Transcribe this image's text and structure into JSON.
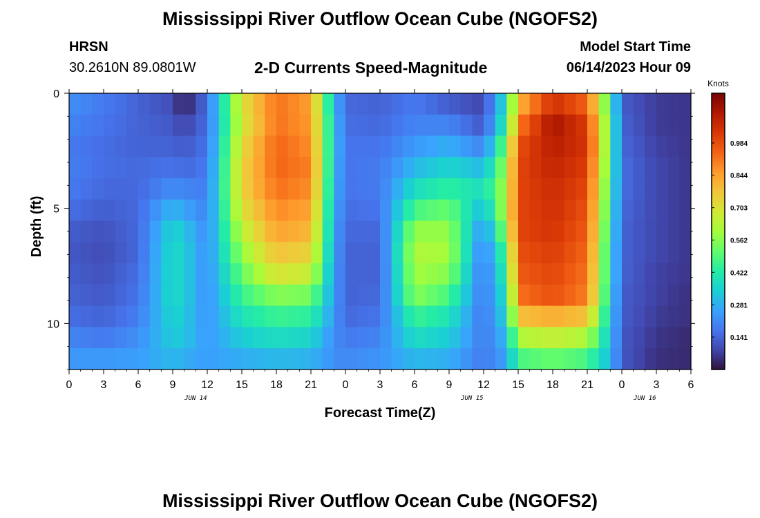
{
  "header": {
    "title_top": "Mississippi River Outflow Ocean Cube (NGOFS2)",
    "station_name": "HRSN",
    "station_coords": "30.2610N  89.0801W",
    "subtitle": "2-D Currents Speed-Magnitude",
    "model_start_label": "Model Start Time",
    "model_start_value": "06/14/2023 Hour 09",
    "title_bottom": "Mississippi River Outflow Ocean Cube (NGOFS2)"
  },
  "chart_data": {
    "type": "heatmap",
    "title": "2-D Currents Speed-Magnitude",
    "xlabel": "Forecast Time(Z)",
    "ylabel": "Depth (ft)",
    "x_tick_labels": [
      "0",
      "3",
      "6",
      "9",
      "12",
      "15",
      "18",
      "21",
      "0",
      "3",
      "6",
      "9",
      "12",
      "15",
      "18",
      "21",
      "0",
      "3",
      "6"
    ],
    "x_date_labels": [
      {
        "label": "JUN 14",
        "hours_from_start": 11
      },
      {
        "label": "JUN 15",
        "hours_from_start": 35
      },
      {
        "label": "JUN 16",
        "hours_from_start": 50
      }
    ],
    "x_range_hours": [
      0,
      54
    ],
    "y_tick_labels": [
      "0",
      "5",
      "10"
    ],
    "y_range_ft": [
      0,
      12
    ],
    "y_inverted": true,
    "colorbar": {
      "unit_label": "Knots",
      "tick_labels": [
        "0.141",
        "0.281",
        "0.422",
        "0.562",
        "0.703",
        "0.844",
        "0.984"
      ],
      "range": [
        0.0,
        1.2
      ],
      "colormap": [
        "#30123b",
        "#4145ab",
        "#4675ed",
        "#39a2fc",
        "#1bcfd4",
        "#24eca6",
        "#61fc6c",
        "#a4fc3b",
        "#d1e834",
        "#f3c63a",
        "#fe9b2d",
        "#f36315",
        "#d93806",
        "#b11901",
        "#7a0403"
      ]
    },
    "time_hours": [
      0,
      3,
      6,
      9,
      10,
      12,
      15,
      18,
      21,
      23,
      24,
      27,
      30,
      33,
      36,
      38,
      39,
      42,
      45,
      47,
      48,
      51,
      54
    ],
    "depth_ft": [
      0,
      1,
      2,
      3,
      4,
      5,
      6,
      7,
      8,
      9,
      10,
      11,
      12
    ],
    "speed_knots": [
      [
        0.22,
        0.18,
        0.14,
        0.1,
        0.02,
        0.16,
        0.7,
        0.92,
        0.85,
        0.3,
        0.15,
        0.14,
        0.18,
        0.13,
        0.09,
        0.4,
        0.8,
        1.05,
        0.95,
        0.45,
        0.13,
        0.07,
        0.06
      ],
      [
        0.2,
        0.17,
        0.14,
        0.12,
        0.08,
        0.16,
        0.68,
        0.92,
        0.86,
        0.32,
        0.16,
        0.15,
        0.2,
        0.2,
        0.12,
        0.45,
        0.9,
        1.13,
        1.02,
        0.48,
        0.14,
        0.07,
        0.06
      ],
      [
        0.18,
        0.16,
        0.14,
        0.14,
        0.12,
        0.17,
        0.72,
        0.94,
        0.88,
        0.32,
        0.17,
        0.17,
        0.24,
        0.28,
        0.2,
        0.55,
        0.98,
        1.1,
        1.04,
        0.48,
        0.15,
        0.08,
        0.06
      ],
      [
        0.19,
        0.16,
        0.15,
        0.17,
        0.15,
        0.18,
        0.74,
        0.94,
        0.9,
        0.31,
        0.17,
        0.18,
        0.3,
        0.36,
        0.3,
        0.6,
        1.0,
        1.08,
        1.02,
        0.46,
        0.16,
        0.09,
        0.06
      ],
      [
        0.18,
        0.15,
        0.15,
        0.22,
        0.2,
        0.19,
        0.74,
        0.92,
        0.88,
        0.3,
        0.17,
        0.18,
        0.38,
        0.44,
        0.38,
        0.62,
        1.0,
        1.06,
        1.0,
        0.44,
        0.16,
        0.09,
        0.06
      ],
      [
        0.16,
        0.13,
        0.15,
        0.3,
        0.26,
        0.2,
        0.7,
        0.88,
        0.84,
        0.28,
        0.16,
        0.17,
        0.48,
        0.52,
        0.3,
        0.64,
        1.0,
        1.05,
        0.98,
        0.42,
        0.15,
        0.09,
        0.06
      ],
      [
        0.13,
        0.11,
        0.15,
        0.36,
        0.32,
        0.21,
        0.64,
        0.84,
        0.8,
        0.27,
        0.15,
        0.15,
        0.58,
        0.58,
        0.22,
        0.58,
        1.0,
        1.04,
        0.96,
        0.4,
        0.14,
        0.09,
        0.06
      ],
      [
        0.12,
        0.1,
        0.15,
        0.38,
        0.34,
        0.22,
        0.58,
        0.78,
        0.74,
        0.26,
        0.14,
        0.14,
        0.62,
        0.6,
        0.18,
        0.5,
        0.98,
        1.02,
        0.94,
        0.38,
        0.14,
        0.09,
        0.06
      ],
      [
        0.13,
        0.11,
        0.16,
        0.38,
        0.34,
        0.22,
        0.52,
        0.7,
        0.66,
        0.25,
        0.14,
        0.14,
        0.6,
        0.56,
        0.17,
        0.45,
        0.96,
        1.0,
        0.92,
        0.38,
        0.14,
        0.08,
        0.06
      ],
      [
        0.14,
        0.12,
        0.17,
        0.38,
        0.34,
        0.22,
        0.46,
        0.56,
        0.54,
        0.25,
        0.14,
        0.15,
        0.56,
        0.48,
        0.17,
        0.4,
        0.92,
        0.98,
        0.9,
        0.36,
        0.13,
        0.08,
        0.05
      ],
      [
        0.16,
        0.14,
        0.19,
        0.36,
        0.33,
        0.23,
        0.4,
        0.46,
        0.44,
        0.24,
        0.15,
        0.17,
        0.46,
        0.4,
        0.17,
        0.36,
        0.78,
        0.82,
        0.78,
        0.34,
        0.13,
        0.07,
        0.05
      ],
      [
        0.2,
        0.18,
        0.22,
        0.34,
        0.32,
        0.24,
        0.34,
        0.38,
        0.36,
        0.22,
        0.18,
        0.2,
        0.38,
        0.34,
        0.18,
        0.3,
        0.62,
        0.66,
        0.62,
        0.32,
        0.12,
        0.06,
        0.04
      ],
      [
        0.24,
        0.24,
        0.25,
        0.3,
        0.28,
        0.25,
        0.28,
        0.3,
        0.29,
        0.22,
        0.21,
        0.23,
        0.3,
        0.28,
        0.18,
        0.26,
        0.48,
        0.52,
        0.48,
        0.3,
        0.12,
        0.05,
        0.04
      ]
    ]
  }
}
